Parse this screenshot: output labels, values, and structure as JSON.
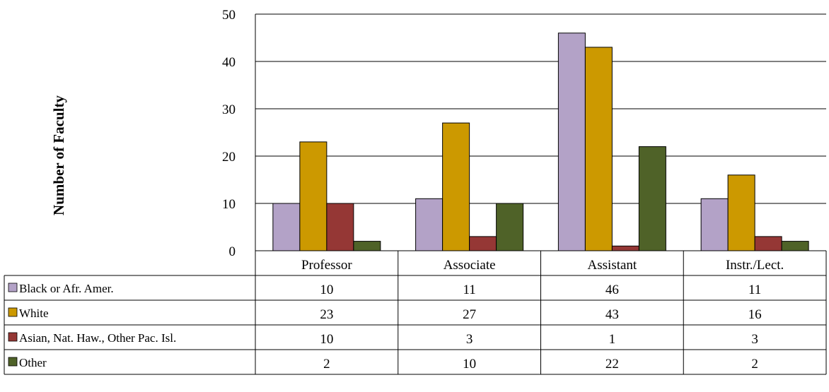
{
  "chart_data": {
    "type": "bar",
    "ylabel": "Number of Faculty",
    "ylim": [
      0,
      50
    ],
    "yticks": [
      0,
      10,
      20,
      30,
      40,
      50
    ],
    "grid": true,
    "legend": "data-table",
    "categories": [
      "Professor",
      "Associate",
      "Assistant",
      "Instr./Lect."
    ],
    "series": [
      {
        "name": "Black or Afr. Amer.",
        "color": "#b3a2c7",
        "values": [
          10,
          11,
          46,
          11
        ]
      },
      {
        "name": "White",
        "color": "#cc9900",
        "values": [
          23,
          27,
          43,
          16
        ]
      },
      {
        "name": "Asian, Nat. Haw., Other Pac. Isl.",
        "color": "#953735",
        "values": [
          10,
          3,
          1,
          3
        ]
      },
      {
        "name": "Other",
        "color": "#4f6228",
        "values": [
          2,
          10,
          22,
          2
        ]
      }
    ]
  }
}
